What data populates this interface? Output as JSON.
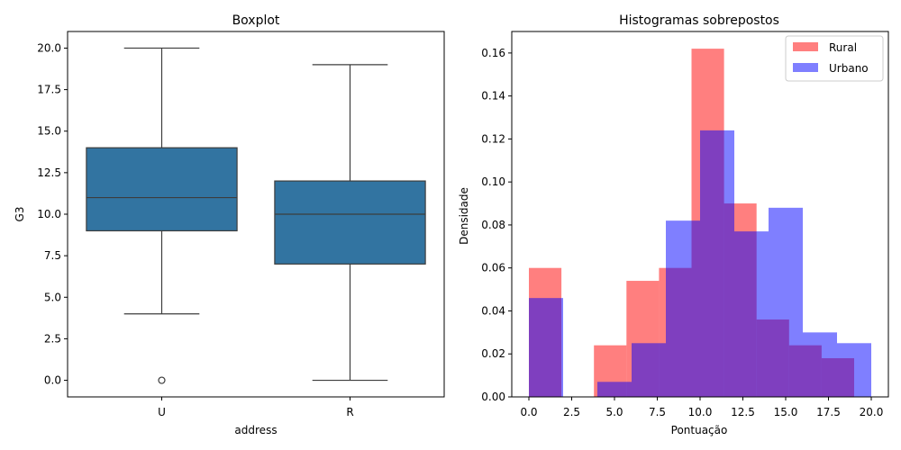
{
  "chart_data": [
    {
      "type": "box",
      "title": "Boxplot",
      "xlabel": "address",
      "ylabel": "G3",
      "ylim": [
        -1,
        21
      ],
      "yticks": [
        "0.0",
        "2.5",
        "5.0",
        "7.5",
        "10.0",
        "12.5",
        "15.0",
        "17.5",
        "20.0"
      ],
      "categories": [
        "U",
        "R"
      ],
      "boxes": [
        {
          "category": "U",
          "whisker_low": 4,
          "q1": 9,
          "median": 11,
          "q3": 14,
          "whisker_high": 20,
          "outliers": [
            0
          ]
        },
        {
          "category": "R",
          "whisker_low": 0,
          "q1": 7,
          "median": 10,
          "q3": 12,
          "whisker_high": 19,
          "outliers": []
        }
      ],
      "colors": {
        "box": "#3274a1",
        "line": "#3d3d3d"
      }
    },
    {
      "type": "histogram",
      "title": "Histogramas sobrepostos",
      "xlabel": "Pontuação",
      "ylabel": "Densidade",
      "xlim": [
        -1,
        21
      ],
      "ylim": [
        0,
        0.17
      ],
      "xticks": [
        "0.0",
        "2.5",
        "5.0",
        "7.5",
        "10.0",
        "12.5",
        "15.0",
        "17.5",
        "20.0"
      ],
      "yticks": [
        "0.00",
        "0.02",
        "0.04",
        "0.06",
        "0.08",
        "0.10",
        "0.12",
        "0.14",
        "0.16"
      ],
      "legend_position": "top-right",
      "series": [
        {
          "name": "Rural",
          "color": "#ff0000",
          "opacity": 0.5,
          "bin_edges": [
            0,
            1.9,
            3.8,
            5.7,
            7.6,
            9.5,
            11.4,
            13.3,
            15.2,
            17.1,
            19.0
          ],
          "densities": [
            0.06,
            0.0,
            0.024,
            0.054,
            0.06,
            0.162,
            0.09,
            0.036,
            0.024,
            0.018
          ]
        },
        {
          "name": "Urbano",
          "color": "#0000ff",
          "opacity": 0.5,
          "bin_edges": [
            0,
            2,
            4,
            6,
            8,
            10,
            12,
            14,
            16,
            18,
            20
          ],
          "densities": [
            0.046,
            0.0,
            0.007,
            0.025,
            0.082,
            0.124,
            0.077,
            0.088,
            0.03,
            0.025
          ]
        }
      ]
    }
  ]
}
